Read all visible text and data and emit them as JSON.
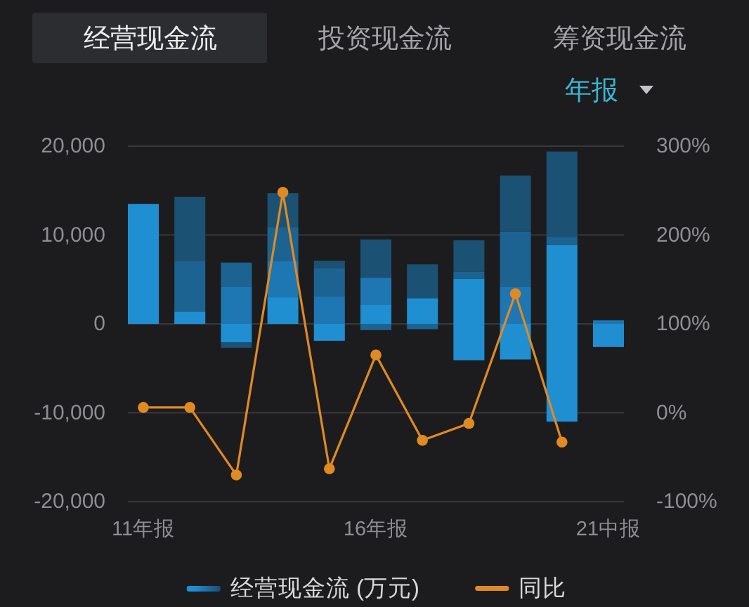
{
  "chart_data": {
    "type": "bar",
    "stacked": true,
    "annotations": [
      "经营现金流",
      "投资现金流",
      "筹资现金流",
      "年报"
    ],
    "categories": [
      "11年报",
      null,
      null,
      null,
      null,
      "16年报",
      null,
      null,
      null,
      null,
      "21中报"
    ],
    "series": [
      {
        "name": "经营现金流 (万元)",
        "color": "#1f8fd1",
        "values": [
          13500,
          1400,
          null,
          3000,
          null,
          2200,
          2900,
          5100,
          null,
          8900,
          null
        ]
      },
      {
        "color": "#1f8fd1",
        "values": [
          null,
          null,
          -2100,
          null,
          -1900,
          null,
          null,
          -4100,
          -4000,
          -11000,
          -2600
        ]
      },
      {
        "color": "#1e77b2",
        "values": [
          null,
          null,
          4200,
          4100,
          3100,
          3000,
          null,
          null,
          4200,
          null,
          400
        ]
      },
      {
        "color": "#1c6392",
        "values": [
          null,
          5700,
          2700,
          3800,
          3200,
          -700,
          -600,
          800,
          6200,
          900,
          null
        ]
      },
      {
        "color": "#1b5173",
        "values": [
          null,
          7200,
          -600,
          3800,
          800,
          4300,
          3800,
          3500,
          6300,
          9600,
          null
        ]
      },
      {
        "type": "line",
        "name": "同比",
        "color": "#e08a23",
        "axis": "y2",
        "values": [
          6,
          6,
          -70,
          248,
          -63,
          65,
          -31,
          -12,
          134,
          -33,
          null
        ]
      }
    ],
    "ylim": [
      -20000,
      20000
    ],
    "yticks": [
      {
        "value": -20000,
        "label": "-20,000"
      },
      {
        "value": -10000,
        "label": "-10,000"
      },
      0,
      {
        "value": 10000,
        "label": "10,000"
      },
      {
        "value": 20000,
        "label": "20,000"
      }
    ],
    "y2lim": [
      -100,
      300
    ],
    "y2ticks": [
      {
        "value": -100,
        "label": "-100%"
      },
      {
        "value": 0,
        "label": "0%"
      },
      {
        "value": 100,
        "label": "100%"
      },
      {
        "value": 200,
        "label": "200%"
      },
      {
        "value": 300,
        "label": "300%"
      }
    ],
    "grid": true,
    "legend": "bottom",
    "marker": "circle"
  }
}
